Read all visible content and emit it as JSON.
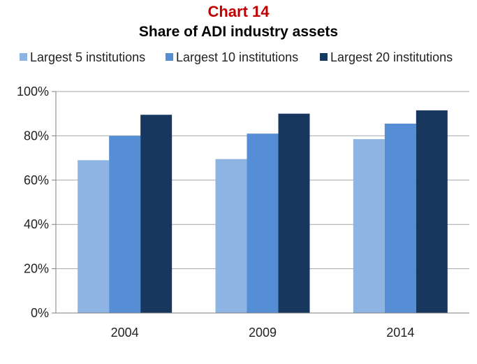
{
  "chart_data": {
    "type": "bar",
    "title": "Chart 14",
    "subtitle": "Share of ADI industry assets",
    "categories": [
      "2004",
      "2009",
      "2014"
    ],
    "series": [
      {
        "name": "Largest 5 institutions",
        "color": "#8DB4E2",
        "values": [
          69,
          69.5,
          78.5
        ]
      },
      {
        "name": "Largest 10 institutions",
        "color": "#558ED5",
        "values": [
          80,
          81,
          85.5
        ]
      },
      {
        "name": "Largest 20 institutions",
        "color": "#17375E",
        "values": [
          89.5,
          90,
          91.5
        ]
      }
    ],
    "ylim": [
      0,
      100
    ],
    "yticks": [
      "0%",
      "20%",
      "40%",
      "60%",
      "80%",
      "100%"
    ],
    "grid": true,
    "legend_position": "top",
    "title_color": "#C00000"
  }
}
